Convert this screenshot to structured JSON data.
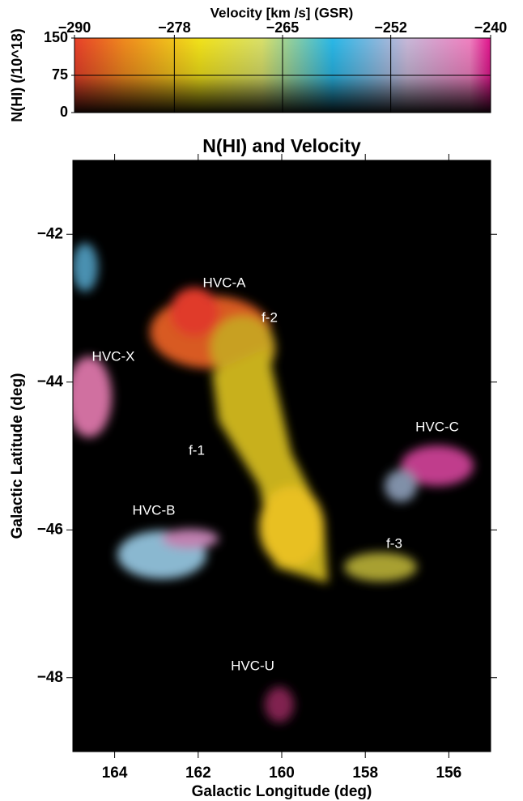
{
  "chart_data": [
    {
      "type": "colorbar",
      "xlabel": "Velocity [km /s] (GSR)",
      "ylabel": "N(HI) (/10^18)",
      "xlim": [
        -290,
        -240
      ],
      "xticks": [
        {
          "value": -290,
          "label": "−290"
        },
        {
          "value": -278,
          "label": "−278"
        },
        {
          "value": -265,
          "label": "−265"
        },
        {
          "value": -252,
          "label": "−252"
        },
        {
          "value": -240,
          "label": "−240"
        }
      ],
      "ylim": [
        0,
        150
      ],
      "yticks": [
        0,
        75,
        150
      ],
      "grid": true
    },
    {
      "type": "map",
      "title": "N(HI) and Velocity",
      "xlabel": "Galactic Longitude (deg)",
      "ylabel": "Galactic Latitude  (deg)",
      "xlim": [
        165,
        155
      ],
      "ylim": [
        -49,
        -41
      ],
      "xticks": [
        164,
        162,
        160,
        158,
        156
      ],
      "yticks": [
        {
          "value": -42,
          "label": "−42"
        },
        {
          "value": -44,
          "label": "−44"
        },
        {
          "value": -46,
          "label": "−46"
        },
        {
          "value": -48,
          "label": "−48"
        }
      ],
      "annotations": [
        "HVC-A",
        "f-2",
        "HVC-X",
        "HVC-C",
        "f-1",
        "HVC-B",
        "f-3",
        "HVC-U"
      ]
    }
  ]
}
